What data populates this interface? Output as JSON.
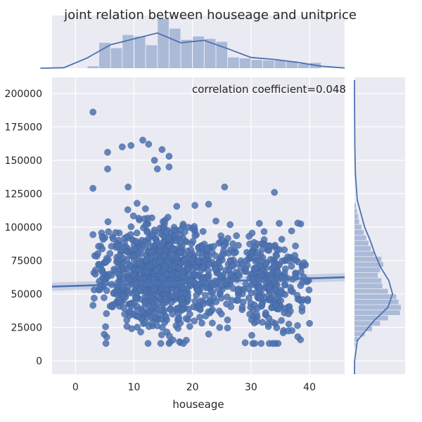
{
  "chart_data": {
    "type": "scatter",
    "title": "joint relation between houseage and unitprice",
    "xlabel": "houseage",
    "ylabel": "",
    "xlim": [
      -4,
      46
    ],
    "ylim": [
      -10000,
      212000
    ],
    "xticks": [
      0,
      10,
      20,
      30,
      40
    ],
    "yticks": [
      0,
      25000,
      50000,
      75000,
      100000,
      125000,
      150000,
      175000,
      200000
    ],
    "xtick_labels": [
      "0",
      "10",
      "20",
      "30",
      "40"
    ],
    "ytick_labels": [
      "0",
      "25000",
      "50000",
      "75000",
      "100000",
      "125000",
      "150000",
      "175000",
      "200000"
    ],
    "annotation": "correlation coefficient=0.048",
    "regression": {
      "x": [
        -4,
        46
      ],
      "y": [
        55500,
        62500
      ]
    },
    "outliers": [
      [
        3,
        186000
      ],
      [
        11.5,
        165000
      ],
      [
        14.8,
        158000
      ],
      [
        5.5,
        156000
      ],
      [
        8,
        160000
      ],
      [
        9.5,
        161000
      ],
      [
        12.5,
        162000
      ],
      [
        13.5,
        150000
      ],
      [
        16,
        153000
      ],
      [
        5.5,
        143500
      ],
      [
        14,
        143500
      ],
      [
        16,
        145000
      ],
      [
        25.5,
        130000
      ],
      [
        3,
        129000
      ],
      [
        9,
        130000
      ],
      [
        34,
        126000
      ],
      [
        38,
        103000
      ],
      [
        29,
        13500
      ],
      [
        38,
        18000
      ],
      [
        40,
        28000
      ],
      [
        35.5,
        21000
      ]
    ],
    "scatter_bounds": {
      "xmin": 3,
      "xmax": 40,
      "ymin": 13000,
      "ymax": 120000,
      "center_x": 14,
      "center_y": 60000
    },
    "n_points": 1320,
    "marginal_x_hist": {
      "bin_edges": [
        2,
        4,
        6,
        8,
        10,
        12,
        14,
        16,
        18,
        20,
        22,
        24,
        26,
        28,
        30,
        32,
        34,
        36,
        38,
        40,
        42
      ],
      "density": [
        0.004,
        0.052,
        0.041,
        0.068,
        0.065,
        0.047,
        0.101,
        0.081,
        0.058,
        0.065,
        0.06,
        0.054,
        0.022,
        0.02,
        0.017,
        0.016,
        0.016,
        0.013,
        0.009,
        0.011
      ],
      "kde_x": [
        -6,
        -2,
        2,
        6,
        10,
        14,
        18,
        22,
        26,
        30,
        34,
        38,
        42,
        46
      ],
      "kde_y": [
        0.0,
        0.001,
        0.021,
        0.048,
        0.06,
        0.072,
        0.052,
        0.057,
        0.04,
        0.022,
        0.018,
        0.012,
        0.004,
        0.0005
      ]
    },
    "marginal_y_hist": {
      "bin_edges": [
        10000,
        14000,
        18000,
        22000,
        26000,
        30000,
        34000,
        38000,
        42000,
        46000,
        50000,
        54000,
        58000,
        62000,
        66000,
        70000,
        74000,
        78000,
        82000,
        86000,
        90000,
        94000,
        98000,
        102000,
        106000,
        110000,
        114000,
        118000
      ],
      "density": [
        0.02,
        0.08,
        0.22,
        0.38,
        0.55,
        0.72,
        0.98,
        1.0,
        0.95,
        0.9,
        0.72,
        0.6,
        0.58,
        0.5,
        0.55,
        0.62,
        0.58,
        0.42,
        0.35,
        0.3,
        0.25,
        0.2,
        0.15,
        0.1,
        0.08,
        0.05,
        0.03
      ],
      "kde_y": [
        -10000,
        0,
        15000,
        30000,
        40000,
        50000,
        60000,
        70000,
        80000,
        90000,
        100000,
        120000,
        140000,
        160000,
        190000,
        210000
      ],
      "kde_x": [
        0.0,
        0.003,
        0.06,
        0.42,
        0.72,
        0.82,
        0.74,
        0.56,
        0.44,
        0.34,
        0.22,
        0.06,
        0.02,
        0.008,
        0.002,
        0.0
      ]
    },
    "colors": {
      "point": "#4c72b0",
      "bar": "#a4b5d4",
      "line": "#4c72b0",
      "panel_bg": "#eaeaf2",
      "grid": "#ffffff",
      "text": "#262626"
    }
  }
}
